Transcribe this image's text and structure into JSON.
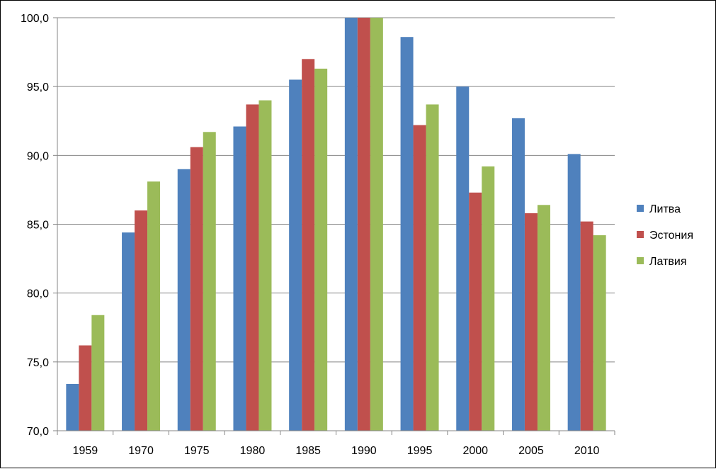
{
  "chart_data": {
    "type": "bar",
    "categories": [
      "1959",
      "1970",
      "1975",
      "1980",
      "1985",
      "1990",
      "1995",
      "2000",
      "2005",
      "2010"
    ],
    "series": [
      {
        "name": "Литва",
        "color": "#4F81BD",
        "values": [
          73.4,
          84.4,
          89.0,
          92.1,
          95.5,
          100.0,
          98.6,
          95.0,
          92.7,
          90.1
        ]
      },
      {
        "name": "Эстония",
        "color": "#C0504D",
        "values": [
          76.2,
          86.0,
          90.6,
          93.7,
          97.0,
          100.0,
          92.2,
          87.3,
          85.8,
          85.2
        ]
      },
      {
        "name": "Латвия",
        "color": "#9BBB59",
        "values": [
          78.4,
          88.1,
          91.7,
          94.0,
          96.3,
          100.0,
          93.7,
          89.2,
          86.4,
          84.2
        ]
      }
    ],
    "y_ticks": [
      "70,0",
      "75,0",
      "80,0",
      "85,0",
      "90,0",
      "95,0",
      "100,0"
    ],
    "ylim": [
      70,
      100
    ],
    "grid": true,
    "legend_position": "right",
    "title": "",
    "xlabel": "",
    "ylabel": ""
  }
}
